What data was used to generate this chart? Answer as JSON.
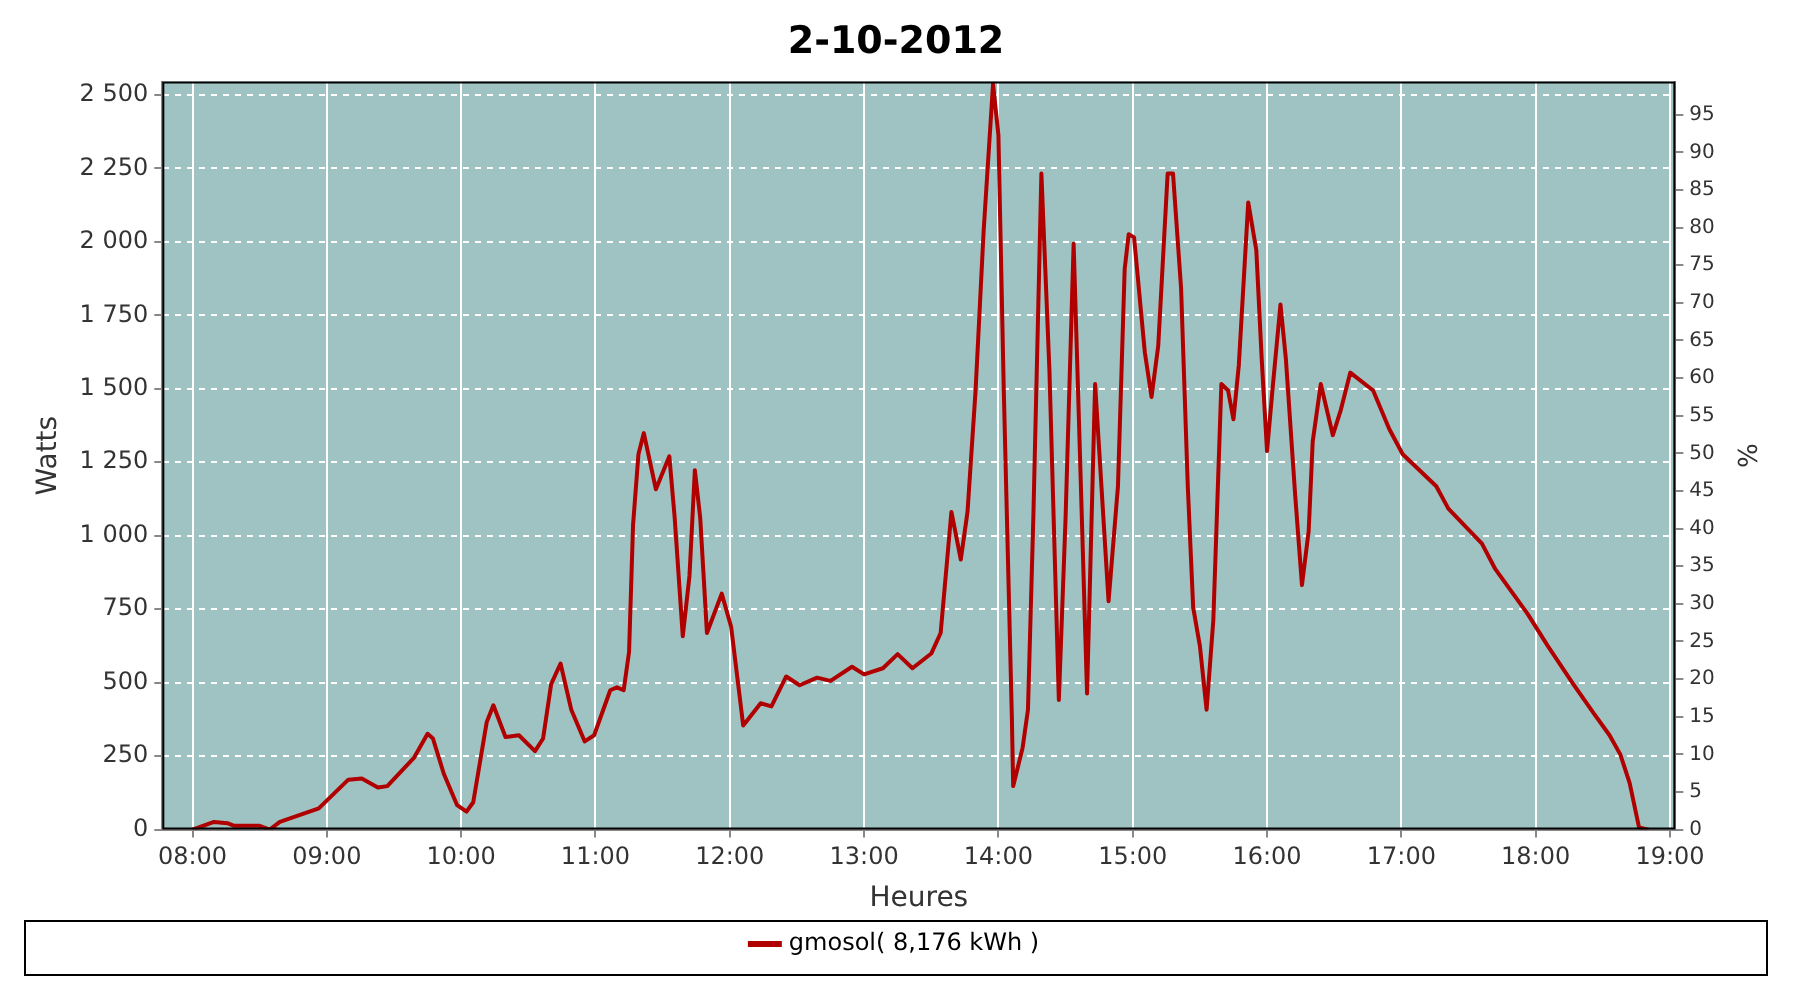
{
  "chart_data": {
    "type": "line",
    "title": "2-10-2012",
    "xlabel": "Heures",
    "ylabel": "Watts",
    "y2label": "%",
    "xlim": [
      7.775,
      19.04
    ],
    "xticks": [
      {
        "value": 8,
        "label": "08:00"
      },
      {
        "value": 9,
        "label": "09:00"
      },
      {
        "value": 10,
        "label": "10:00"
      },
      {
        "value": 11,
        "label": "11:00"
      },
      {
        "value": 12,
        "label": "12:00"
      },
      {
        "value": 13,
        "label": "13:00"
      },
      {
        "value": 14,
        "label": "14:00"
      },
      {
        "value": 15,
        "label": "15:00"
      },
      {
        "value": 16,
        "label": "16:00"
      },
      {
        "value": 17,
        "label": "17:00"
      },
      {
        "value": 18,
        "label": "18:00"
      },
      {
        "value": 19,
        "label": "19:00"
      }
    ],
    "ylim": [
      0,
      2545
    ],
    "yticks": [
      0,
      250,
      500,
      750,
      {
        "value": 1000,
        "label": "1 000"
      },
      {
        "value": 1250,
        "label": "1 250"
      },
      {
        "value": 1500,
        "label": "1 500"
      },
      {
        "value": 1750,
        "label": "1 750"
      },
      {
        "value": 2000,
        "label": "2 000"
      },
      {
        "value": 2250,
        "label": "2 250"
      },
      {
        "value": 2500,
        "label": "2 500"
      }
    ],
    "y2lim": [
      0,
      99.4
    ],
    "y2ticks": [
      0,
      5,
      10,
      15,
      20,
      25,
      30,
      35,
      40,
      45,
      50,
      55,
      60,
      65,
      70,
      75,
      80,
      85,
      90,
      95
    ],
    "grid": true,
    "legend": "bottom",
    "marker": "none",
    "line_style": "solid",
    "series": [
      {
        "name": "gmosol( 8,176 kWh )",
        "color": "#b00000",
        "x": [
          8.0,
          8.16,
          8.26,
          8.31,
          8.5,
          8.575,
          8.65,
          8.94,
          9.16,
          9.26,
          9.38,
          9.45,
          9.65,
          9.75,
          9.79,
          9.87,
          9.97,
          10.04,
          10.09,
          10.19,
          10.24,
          10.33,
          10.43,
          10.55,
          10.61,
          10.67,
          10.74,
          10.82,
          10.92,
          10.99,
          11.11,
          11.16,
          11.21,
          11.25,
          11.28,
          11.32,
          11.36,
          11.45,
          11.55,
          11.59,
          11.65,
          11.7,
          11.74,
          11.78,
          11.83,
          11.94,
          12.01,
          12.1,
          12.23,
          12.31,
          12.42,
          12.52,
          12.65,
          12.75,
          12.91,
          13.0,
          13.14,
          13.25,
          13.36,
          13.5,
          13.57,
          13.65,
          13.72,
          13.77,
          13.83,
          13.89,
          13.96,
          14.0,
          14.04,
          14.1,
          14.11,
          14.18,
          14.22,
          14.26,
          14.32,
          14.38,
          14.45,
          14.5,
          14.56,
          14.6,
          14.66,
          14.72,
          14.82,
          14.89,
          14.94,
          14.97,
          15.01,
          15.09,
          15.14,
          15.19,
          15.26,
          15.3,
          15.36,
          15.41,
          15.45,
          15.5,
          15.55,
          15.6,
          15.66,
          15.71,
          15.75,
          15.79,
          15.86,
          15.92,
          15.96,
          16.0,
          16.04,
          16.1,
          16.14,
          16.21,
          16.26,
          16.31,
          16.34,
          16.4,
          16.49,
          16.55,
          16.62,
          16.79,
          16.91,
          17.01,
          17.26,
          17.35,
          17.6,
          17.7,
          17.94,
          18.09,
          18.28,
          18.43,
          18.55,
          18.63,
          18.7,
          18.77,
          18.84
        ],
        "values": [
          0,
          26,
          22,
          13,
          13,
          0,
          26,
          72,
          170,
          174,
          143,
          148,
          245,
          326,
          310,
          191,
          83,
          61,
          93,
          365,
          423,
          315,
          321,
          267,
          310,
          495,
          565,
          408,
          300,
          321,
          474,
          484,
          474,
          604,
          1038,
          1277,
          1349,
          1158,
          1270,
          1060,
          658,
          864,
          1223,
          1060,
          669,
          803,
          690,
          354,
          430,
          419,
          521,
          491,
          517,
          506,
          554,
          528,
          549,
          597,
          549,
          599,
          669,
          1081,
          919,
          1081,
          1494,
          2037,
          2536,
          2363,
          1494,
          386,
          148,
          278,
          408,
          1060,
          2232,
          1560,
          441,
          1060,
          1993,
          1386,
          463,
          1516,
          777,
          1168,
          1907,
          2026,
          2015,
          1624,
          1472,
          1646,
          2232,
          2232,
          1842,
          1168,
          756,
          625,
          408,
          712,
          1516,
          1494,
          1396,
          1581,
          2134,
          1972,
          1603,
          1288,
          1494,
          1787,
          1603,
          1135,
          832,
          1016,
          1320,
          1516,
          1342,
          1429,
          1555,
          1494,
          1363,
          1277,
          1168,
          1092,
          973,
          886,
          734,
          625,
          495,
          397,
          321,
          256,
          158,
          7,
          0
        ]
      }
    ]
  }
}
